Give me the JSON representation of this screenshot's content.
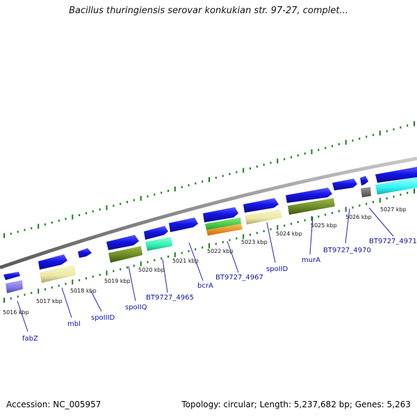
{
  "header": {
    "title": "Bacillus thuringiensis serovar konkukian str. 97-27, complet..."
  },
  "footer": {
    "accession": "Accession: NC_005957",
    "topology": "Topology: circular; Length: 5,237,682 bp; Genes: 5,263"
  },
  "map": {
    "ticks": [
      "5016 kbp",
      "5017 kbp",
      "5018 kbp",
      "5019 kbp",
      "5020 kbp",
      "5021 kbp",
      "5022 kbp",
      "5023 kbp",
      "5024 kbp",
      "5025 kbp",
      "5026 kbp",
      "5027 kbp"
    ],
    "gene_labels": [
      "fabZ",
      "mbl",
      "spoIIID",
      "spoIIQ",
      "BT9727_4965",
      "bcrA",
      "BT9727_4967",
      "spoIID",
      "murA",
      "BT9727_4970",
      "BT9727_4971"
    ],
    "colors": {
      "backbone": "#8c8c8c",
      "tick_marks": "#1a7a1a",
      "forward_gene": "#1414e6",
      "label_text": "#1010a8",
      "khaki": "#ece9a4",
      "olive": "#6b8a25",
      "mint": "#30f0b0",
      "green": "#3ad63a",
      "orange": "#f59019",
      "cyan": "#2ff3f3",
      "gray": "#6e6e6e",
      "lavender": "#7f76e4"
    }
  }
}
